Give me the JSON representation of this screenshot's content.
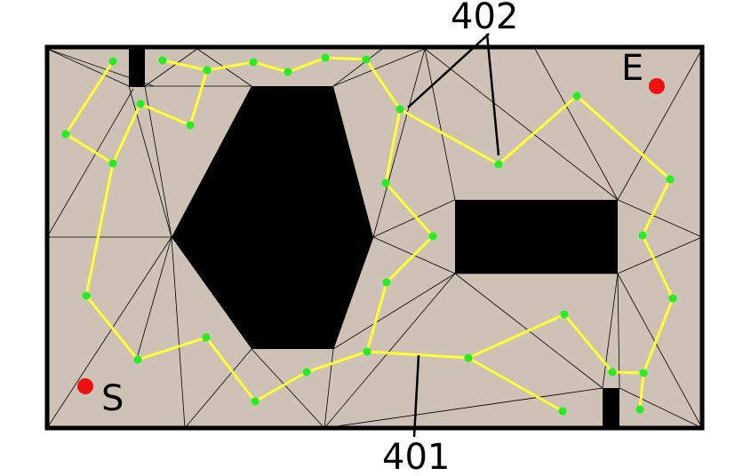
{
  "labels": {
    "start": "S",
    "end": "E",
    "ref_path": "401",
    "ref_nodes": "402"
  },
  "colors": {
    "background": "#ffffff",
    "free_space": "#cdc2b5",
    "obstacle": "#000000",
    "border": "#000000",
    "mesh_line": "#000000",
    "path": "#ffff33",
    "node": "#22ee22",
    "start_end_marker": "#ee1111"
  }
}
